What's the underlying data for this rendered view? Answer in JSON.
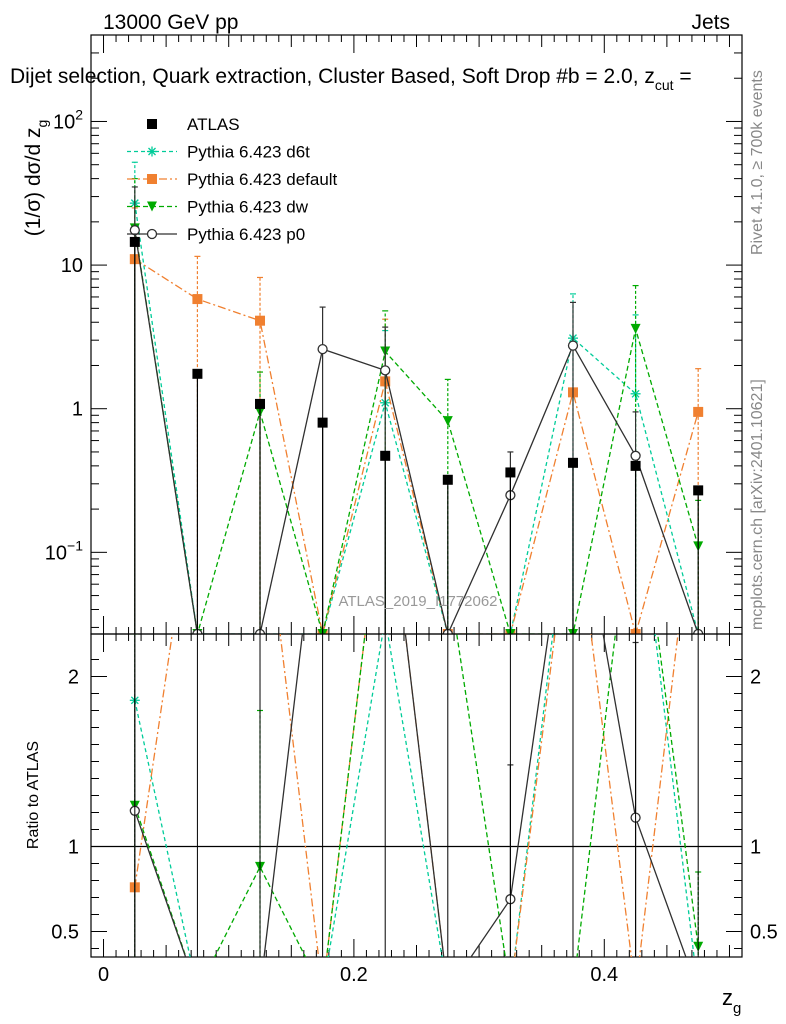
{
  "header": {
    "energy_label": "13000 GeV pp",
    "process_label": "Jets"
  },
  "chart_data": {
    "type": "scatter",
    "title": "Dijet selection, Quark extraction, Cluster Based, Soft Drop #b = 2.0, z_cut =",
    "title_main": "Dijet selection, Quark extraction, Cluster Based, Soft Drop #b = 2.0, z",
    "title_sub": "cut",
    "title_tail": " =",
    "ylabel_main": "(1/σ) dσ/d z",
    "ylabel_sub": "g",
    "ratio_ylabel": "Ratio to ATLAS",
    "xlabel_main": "z",
    "xlabel_sub": "g",
    "x_range": [
      -0.01,
      0.51
    ],
    "main_y_range": [
      0.027,
      400
    ],
    "main_y_scale": "log",
    "ratio_y_range": [
      0.35,
      2.25
    ],
    "ratio_reference": 1,
    "main_y_ticks": [
      {
        "value": 0.1,
        "label": "10",
        "exp": "−1"
      },
      {
        "value": 1,
        "label": "1",
        "exp": ""
      },
      {
        "value": 10,
        "label": "10",
        "exp": ""
      },
      {
        "value": 100,
        "label": "10",
        "exp": "2"
      }
    ],
    "ratio_y_ticks": [
      {
        "value": 0.5,
        "label": "0.5"
      },
      {
        "value": 1,
        "label": "1"
      },
      {
        "value": 2,
        "label": "2"
      }
    ],
    "x_ticks": [
      {
        "value": 0,
        "label": "0"
      },
      {
        "value": 0.2,
        "label": "0.2"
      },
      {
        "value": 0.4,
        "label": "0.4"
      }
    ],
    "x": [
      0.025,
      0.075,
      0.125,
      0.175,
      0.225,
      0.275,
      0.325,
      0.375,
      0.425,
      0.475
    ],
    "data": {
      "name": "ATLAS",
      "values": [
        14.5,
        1.75,
        1.08,
        0.8,
        0.47,
        0.32,
        0.36,
        0.42,
        0.4,
        0.27
      ]
    },
    "series": [
      {
        "name": "Pythia 6.423 d6t",
        "color": "#00cc99",
        "dash": "4,3",
        "marker": "star",
        "values": [
          27,
          0.027,
          0.027,
          0.027,
          1.1,
          0.027,
          0.027,
          3.1,
          1.27,
          0.027
        ],
        "err_up": [
          52,
          null,
          null,
          null,
          3.5,
          null,
          null,
          6.3,
          4.5,
          null
        ]
      },
      {
        "name": "Pythia 6.423 default",
        "color": "#f08030",
        "dash": "8,3,2,3",
        "marker": "square",
        "values": [
          11,
          5.8,
          4.1,
          0.027,
          1.55,
          0.027,
          0.027,
          1.3,
          0.027,
          0.95
        ],
        "err_up": [
          25,
          11.5,
          8.2,
          null,
          4.2,
          null,
          null,
          null,
          null,
          1.9
        ]
      },
      {
        "name": "Pythia 6.423 dw",
        "color": "#00aa00",
        "dash": "5,3",
        "marker": "triangle",
        "values": [
          18,
          0.027,
          0.95,
          0.027,
          2.5,
          0.82,
          0.027,
          0.027,
          3.6,
          0.11
        ],
        "err_up": [
          40,
          null,
          1.8,
          null,
          4.8,
          1.6,
          null,
          null,
          7.2,
          0.23
        ]
      },
      {
        "name": "Pythia 6.423 p0",
        "color": "#303030",
        "dash": "",
        "marker": "circle",
        "values": [
          17.5,
          0.027,
          0.027,
          2.6,
          1.85,
          0.027,
          0.25,
          2.75,
          0.47,
          0.027
        ],
        "err_up": [
          35,
          null,
          null,
          5.1,
          3.7,
          null,
          0.5,
          5.5,
          0.95,
          null
        ]
      }
    ],
    "ratio": {
      "Pythia 6.423 d6t": [
        1.86,
        0.0,
        0.0,
        0.0,
        2.34,
        0.0,
        0.0,
        7.4,
        3.2,
        0.0
      ],
      "Pythia 6.423 default": [
        0.76,
        3.3,
        3.8,
        0.0,
        3.3,
        0.0,
        0.0,
        3.1,
        0.0,
        3.5
      ],
      "Pythia 6.423 dw": [
        1.24,
        0.0,
        0.88,
        0.0,
        5.3,
        2.6,
        0.0,
        0.0,
        9.0,
        0.41
      ],
      "Pythia 6.423 p0": [
        1.21,
        0.0,
        0.0,
        3.25,
        3.9,
        0.0,
        0.69,
        6.5,
        1.17,
        0.0
      ]
    },
    "ratio_err": {
      "Pythia 6.423 dw": [
        [
          0.25,
          2.3
        ],
        null,
        [
          0.1,
          1.8
        ],
        null,
        null,
        null,
        null,
        null,
        null,
        [
          0.1,
          0.85
        ]
      ],
      "Pythia 6.423 p0": [
        [
          0.25,
          2.3
        ],
        null,
        null,
        null,
        null,
        null,
        [
          0.2,
          1.48
        ],
        null,
        [
          0.1,
          2.2
        ],
        null
      ]
    },
    "watermark": "ATLAS_2019_I1772062",
    "side_label_top": "Rivet 4.1.0, ≥ 700k events",
    "side_label_bottom": "mcplots.cern.ch [arXiv:2401.10621]"
  }
}
